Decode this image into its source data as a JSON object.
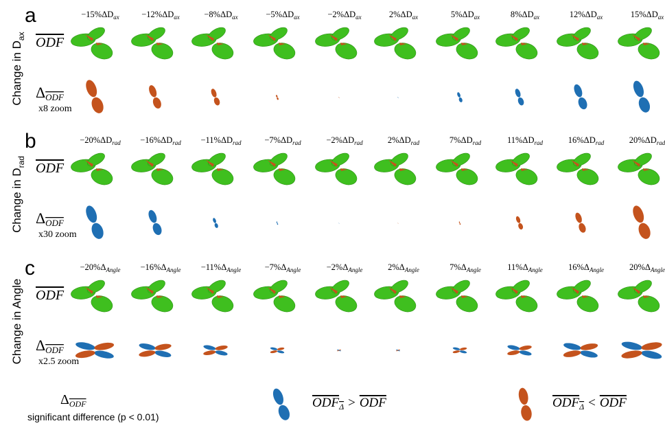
{
  "panels": [
    {
      "letter": "a",
      "side_label": {
        "text": "Change in D",
        "sub": "ax"
      },
      "columns": [
        {
          "text": "−15%ΔD",
          "sub": "ax"
        },
        {
          "text": "−12%ΔD",
          "sub": "ax"
        },
        {
          "text": "−8%ΔD",
          "sub": "ax"
        },
        {
          "text": "−5%ΔD",
          "sub": "ax"
        },
        {
          "text": "−2%ΔD",
          "sub": "ax"
        },
        {
          "text": "2%ΔD",
          "sub": "ax"
        },
        {
          "text": "5%ΔD",
          "sub": "ax"
        },
        {
          "text": "8%ΔD",
          "sub": "ax"
        },
        {
          "text": "12%ΔD",
          "sub": "ax"
        },
        {
          "text": "15%ΔD",
          "sub": "ax"
        }
      ],
      "odf_label": "ODF",
      "delta_label": {
        "delta": "Δ",
        "odf": "ODF",
        "zoom": "x8 zoom"
      }
    },
    {
      "letter": "b",
      "side_label": {
        "text": "Change in D",
        "sub": "rad"
      },
      "columns": [
        {
          "text": "−20%ΔD",
          "sub": "rad"
        },
        {
          "text": "−16%ΔD",
          "sub": "rad"
        },
        {
          "text": "−11%ΔD",
          "sub": "rad"
        },
        {
          "text": "−7%ΔD",
          "sub": "rad"
        },
        {
          "text": "−2%ΔD",
          "sub": "rad"
        },
        {
          "text": "2%ΔD",
          "sub": "rad"
        },
        {
          "text": "7%ΔD",
          "sub": "rad"
        },
        {
          "text": "11%ΔD",
          "sub": "rad"
        },
        {
          "text": "16%ΔD",
          "sub": "rad"
        },
        {
          "text": "20%ΔD",
          "sub": "rad"
        }
      ],
      "odf_label": "ODF",
      "delta_label": {
        "delta": "Δ",
        "odf": "ODF",
        "zoom": "x30 zoom"
      }
    },
    {
      "letter": "c",
      "side_label": {
        "text": "Change in Angle"
      },
      "columns": [
        {
          "text": "−20%Δ",
          "sub": "Angle"
        },
        {
          "text": "−16%Δ",
          "sub": "Angle"
        },
        {
          "text": "−11%Δ",
          "sub": "Angle"
        },
        {
          "text": "−7%Δ",
          "sub": "Angle"
        },
        {
          "text": "−2%Δ",
          "sub": "Angle"
        },
        {
          "text": "2%Δ",
          "sub": "Angle"
        },
        {
          "text": "7%Δ",
          "sub": "Angle"
        },
        {
          "text": "11%Δ",
          "sub": "Angle"
        },
        {
          "text": "16%Δ",
          "sub": "Angle"
        },
        {
          "text": "20%Δ",
          "sub": "Angle"
        }
      ],
      "odf_label": "ODF",
      "delta_label": {
        "delta": "Δ",
        "odf": "ODF",
        "zoom": "x2.5 zoom"
      }
    }
  ],
  "legend": {
    "delta": "Δ",
    "odf": "ODF",
    "note": "significant difference (p < 0.01)",
    "greater": {
      "lhs": "ODF",
      "sub": "Δ",
      "op": ">",
      "rhs": "ODF"
    },
    "less": {
      "lhs": "ODF",
      "sub": "Δ",
      "op": "<",
      "rhs": "ODF"
    }
  }
}
